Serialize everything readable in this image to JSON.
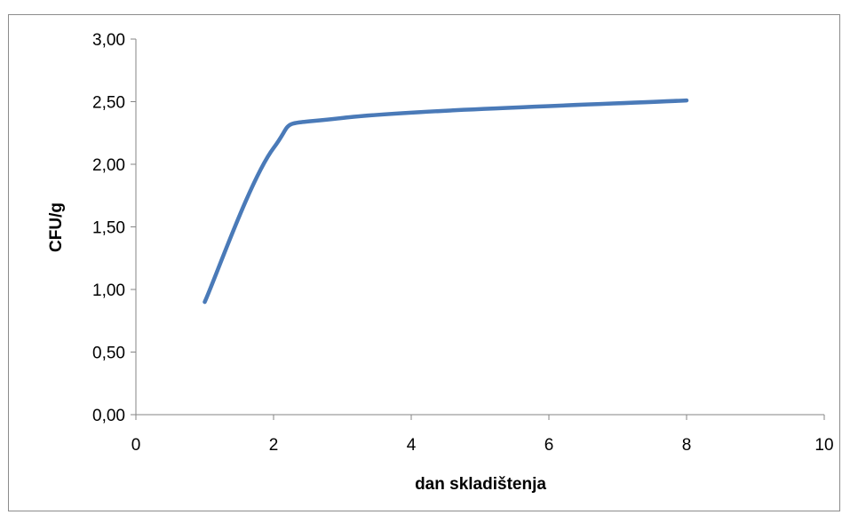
{
  "chart_data": {
    "type": "line",
    "title": "",
    "xlabel": "dan skladištenja",
    "ylabel": "CFU/g",
    "xlim": [
      0,
      10
    ],
    "ylim": [
      0,
      3
    ],
    "x_ticks": [
      "0",
      "2",
      "4",
      "6",
      "8",
      "10"
    ],
    "y_ticks": [
      "0,00",
      "0,50",
      "1,00",
      "1,50",
      "2,00",
      "2,50",
      "3,00"
    ],
    "grid": false,
    "legend": "none",
    "series": [
      {
        "color": "#4a7ab8",
        "smooth": true,
        "x": [
          1,
          2,
          3,
          8
        ],
        "y": [
          0.9,
          2.13,
          2.37,
          2.51
        ]
      }
    ]
  }
}
